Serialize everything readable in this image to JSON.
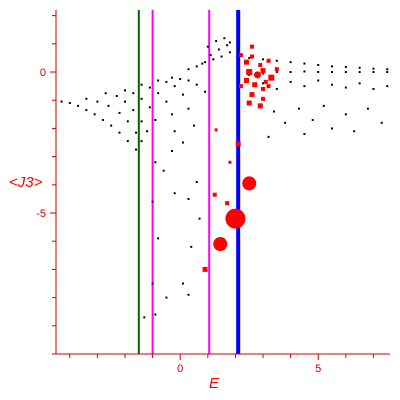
{
  "chart_data": {
    "type": "scatter",
    "title": "",
    "xlabel": "E",
    "ylabel": "<J3>",
    "xlim": [
      -4.5,
      7.6
    ],
    "ylim": [
      -10,
      2.2
    ],
    "grid": false,
    "xticks": [
      0,
      5
    ],
    "xtick_labels": [
      "0",
      "5"
    ],
    "yticks": [
      0,
      -5
    ],
    "ytick_labels": [
      "0",
      "-5"
    ],
    "colors": {
      "axis": "#cc0000",
      "small_points": "#000000",
      "large_points": "#ff0000",
      "line_green": "#006600",
      "line_magenta": "#ff00ff",
      "line_blue": "#0000ff"
    },
    "vertical_lines": [
      {
        "x": -1.5,
        "color": "#006600"
      },
      {
        "x": -1.0,
        "color": "#ff00ff"
      },
      {
        "x": 1.05,
        "color": "#ff00ff"
      },
      {
        "x": 2.1,
        "color": "#0000ff"
      }
    ],
    "series": [
      {
        "values": [
          {
            "x": -4.3,
            "y": -1.05
          },
          {
            "x": -4.0,
            "y": -1.1
          },
          {
            "x": -3.7,
            "y": -1.2
          },
          {
            "x": -3.4,
            "y": -1.35
          },
          {
            "x": -3.1,
            "y": -1.5
          },
          {
            "x": -2.8,
            "y": -1.7
          },
          {
            "x": -2.5,
            "y": -1.9
          },
          {
            "x": -2.2,
            "y": -2.15
          },
          {
            "x": -1.9,
            "y": -2.45
          },
          {
            "x": -1.6,
            "y": -2.75
          },
          {
            "x": -3.4,
            "y": -0.95
          },
          {
            "x": -3.0,
            "y": -1.05
          },
          {
            "x": -2.6,
            "y": -1.2
          },
          {
            "x": -2.2,
            "y": -1.45
          },
          {
            "x": -1.9,
            "y": -1.75
          },
          {
            "x": -1.6,
            "y": -2.15
          },
          {
            "x": -1.4,
            "y": -2.45
          },
          {
            "x": -2.7,
            "y": -0.75
          },
          {
            "x": -2.3,
            "y": -0.85
          },
          {
            "x": -2.0,
            "y": -1.05
          },
          {
            "x": -1.7,
            "y": -1.35
          },
          {
            "x": -1.4,
            "y": -1.75
          },
          {
            "x": -1.2,
            "y": -2.1
          },
          {
            "x": -2.0,
            "y": -0.65
          },
          {
            "x": -1.7,
            "y": -0.75
          },
          {
            "x": -1.4,
            "y": -0.95
          },
          {
            "x": -1.1,
            "y": -1.25
          },
          {
            "x": -0.9,
            "y": -1.7
          },
          {
            "x": -1.4,
            "y": -0.45
          },
          {
            "x": -1.1,
            "y": -0.55
          },
          {
            "x": -0.8,
            "y": -0.75
          },
          {
            "x": -0.5,
            "y": -1.05
          },
          {
            "x": -0.3,
            "y": -1.5
          },
          {
            "x": -0.8,
            "y": -0.3
          },
          {
            "x": -0.5,
            "y": -0.35
          },
          {
            "x": -0.2,
            "y": -0.5
          },
          {
            "x": 0.1,
            "y": -0.8
          },
          {
            "x": 0.3,
            "y": -1.3
          },
          {
            "x": -0.3,
            "y": -0.2
          },
          {
            "x": 0.0,
            "y": -0.25
          },
          {
            "x": 0.3,
            "y": -0.3
          },
          {
            "x": 0.6,
            "y": -0.45
          },
          {
            "x": 0.9,
            "y": -0.7
          },
          {
            "x": 0.3,
            "y": 0.1
          },
          {
            "x": 0.6,
            "y": 0.2
          },
          {
            "x": 0.9,
            "y": 0.35
          },
          {
            "x": 1.2,
            "y": 0.45
          },
          {
            "x": 1.5,
            "y": 0.55
          },
          {
            "x": 1.8,
            "y": 0.7
          },
          {
            "x": 2.1,
            "y": 0.85
          },
          {
            "x": 0.8,
            "y": 0.3
          },
          {
            "x": 1.1,
            "y": 0.6
          },
          {
            "x": 1.4,
            "y": 0.8
          },
          {
            "x": 1.7,
            "y": 0.95
          },
          {
            "x": 1.0,
            "y": 0.9
          },
          {
            "x": 1.3,
            "y": 1.1
          },
          {
            "x": 1.6,
            "y": 1.2
          },
          {
            "x": 1.8,
            "y": 1.05
          },
          {
            "x": 2.5,
            "y": 0.5
          },
          {
            "x": 3.0,
            "y": 0.45
          },
          {
            "x": 3.5,
            "y": 0.4
          },
          {
            "x": 4.0,
            "y": 0.35
          },
          {
            "x": 4.5,
            "y": 0.3
          },
          {
            "x": 5.0,
            "y": 0.25
          },
          {
            "x": 5.5,
            "y": 0.2
          },
          {
            "x": 6.0,
            "y": 0.18
          },
          {
            "x": 6.5,
            "y": 0.15
          },
          {
            "x": 7.0,
            "y": 0.12
          },
          {
            "x": 7.5,
            "y": 0.1
          },
          {
            "x": 2.5,
            "y": -0.1
          },
          {
            "x": 3.0,
            "y": -0.05
          },
          {
            "x": 3.5,
            "y": 0.0
          },
          {
            "x": 4.0,
            "y": 0.0
          },
          {
            "x": 4.5,
            "y": 0.02
          },
          {
            "x": 5.0,
            "y": 0.0
          },
          {
            "x": 5.5,
            "y": 0.0
          },
          {
            "x": 6.0,
            "y": 0.0
          },
          {
            "x": 6.5,
            "y": 0.0
          },
          {
            "x": 7.0,
            "y": 0.0
          },
          {
            "x": 7.5,
            "y": 0.0
          },
          {
            "x": 3.0,
            "y": -0.4
          },
          {
            "x": 3.5,
            "y": -0.6
          },
          {
            "x": 4.0,
            "y": -0.35
          },
          {
            "x": 4.5,
            "y": -0.5
          },
          {
            "x": 5.0,
            "y": -0.3
          },
          {
            "x": 5.5,
            "y": -0.45
          },
          {
            "x": 6.0,
            "y": -0.55
          },
          {
            "x": 6.5,
            "y": -0.4
          },
          {
            "x": 7.0,
            "y": -0.6
          },
          {
            "x": 7.5,
            "y": -0.5
          },
          {
            "x": 3.4,
            "y": -1.4
          },
          {
            "x": 3.8,
            "y": -1.8
          },
          {
            "x": 4.3,
            "y": -1.3
          },
          {
            "x": 4.8,
            "y": -1.7
          },
          {
            "x": 5.2,
            "y": -1.2
          },
          {
            "x": 5.5,
            "y": -2.0
          },
          {
            "x": 6.0,
            "y": -1.5
          },
          {
            "x": 6.3,
            "y": -2.1
          },
          {
            "x": 6.8,
            "y": -1.3
          },
          {
            "x": 7.3,
            "y": -1.8
          },
          {
            "x": 3.2,
            "y": -2.3
          },
          {
            "x": 4.5,
            "y": -2.2
          },
          {
            "x": 0.1,
            "y": -2.5
          },
          {
            "x": -0.2,
            "y": -2.1
          },
          {
            "x": 0.5,
            "y": -1.9
          },
          {
            "x": -1.0,
            "y": -4.6
          },
          {
            "x": -0.6,
            "y": -3.5
          },
          {
            "x": -0.3,
            "y": -2.8
          },
          {
            "x": -0.9,
            "y": -3.2
          },
          {
            "x": -0.8,
            "y": -5.9
          },
          {
            "x": -0.2,
            "y": -4.3
          },
          {
            "x": 0.3,
            "y": -4.5
          },
          {
            "x": 0.6,
            "y": -3.9
          },
          {
            "x": -1.0,
            "y": -7.5
          },
          {
            "x": -0.5,
            "y": -8.0
          },
          {
            "x": 0.1,
            "y": -7.5
          },
          {
            "x": 0.3,
            "y": -7.9
          },
          {
            "x": -1.3,
            "y": -8.7
          },
          {
            "x": -0.9,
            "y": -8.6
          },
          {
            "x": 0.4,
            "y": -6.2
          },
          {
            "x": 0.7,
            "y": -5.2
          }
        ]
      },
      {
        "values": [
          {
            "x": 2.4,
            "y": 0.35,
            "size": 2.5
          },
          {
            "x": 2.6,
            "y": 0.55,
            "size": 2
          },
          {
            "x": 2.9,
            "y": 0.25,
            "size": 2
          },
          {
            "x": 3.2,
            "y": 0.4,
            "size": 2
          },
          {
            "x": 3.5,
            "y": 0.1,
            "size": 2
          },
          {
            "x": 2.5,
            "y": 0.0,
            "size": 3
          },
          {
            "x": 2.8,
            "y": -0.1,
            "size": 3.5
          },
          {
            "x": 3.0,
            "y": 0.05,
            "size": 2.5
          },
          {
            "x": 3.3,
            "y": -0.2,
            "size": 3
          },
          {
            "x": 2.4,
            "y": -0.3,
            "size": 2.5
          },
          {
            "x": 2.7,
            "y": -0.45,
            "size": 2.5
          },
          {
            "x": 3.1,
            "y": -0.35,
            "size": 2
          },
          {
            "x": 2.2,
            "y": -0.5,
            "size": 2
          },
          {
            "x": 2.6,
            "y": -0.8,
            "size": 2.5
          },
          {
            "x": 3.0,
            "y": -0.6,
            "size": 2
          },
          {
            "x": 2.5,
            "y": -1.1,
            "size": 2.5
          },
          {
            "x": 3.0,
            "y": -0.95,
            "size": 2
          },
          {
            "x": 3.2,
            "y": -0.5,
            "size": 2
          },
          {
            "x": 2.9,
            "y": -1.2,
            "size": 2.5
          },
          {
            "x": 2.6,
            "y": 0.9,
            "size": 2
          },
          {
            "x": 2.2,
            "y": 0.6,
            "size": 2
          },
          {
            "x": 1.3,
            "y": -2.05,
            "size": 1.5
          },
          {
            "x": 1.8,
            "y": -3.2,
            "size": 1.5
          },
          {
            "x": 2.1,
            "y": -2.55,
            "size": 2.5
          },
          {
            "x": 1.25,
            "y": -4.35,
            "size": 2
          },
          {
            "x": 1.7,
            "y": -4.65,
            "size": 2
          },
          {
            "x": 2.5,
            "y": -3.95,
            "size": 7
          },
          {
            "x": 2.0,
            "y": -5.2,
            "size": 10
          },
          {
            "x": 1.45,
            "y": -6.1,
            "size": 7
          },
          {
            "x": 0.9,
            "y": -7.0,
            "size": 2.5
          }
        ]
      }
    ]
  }
}
